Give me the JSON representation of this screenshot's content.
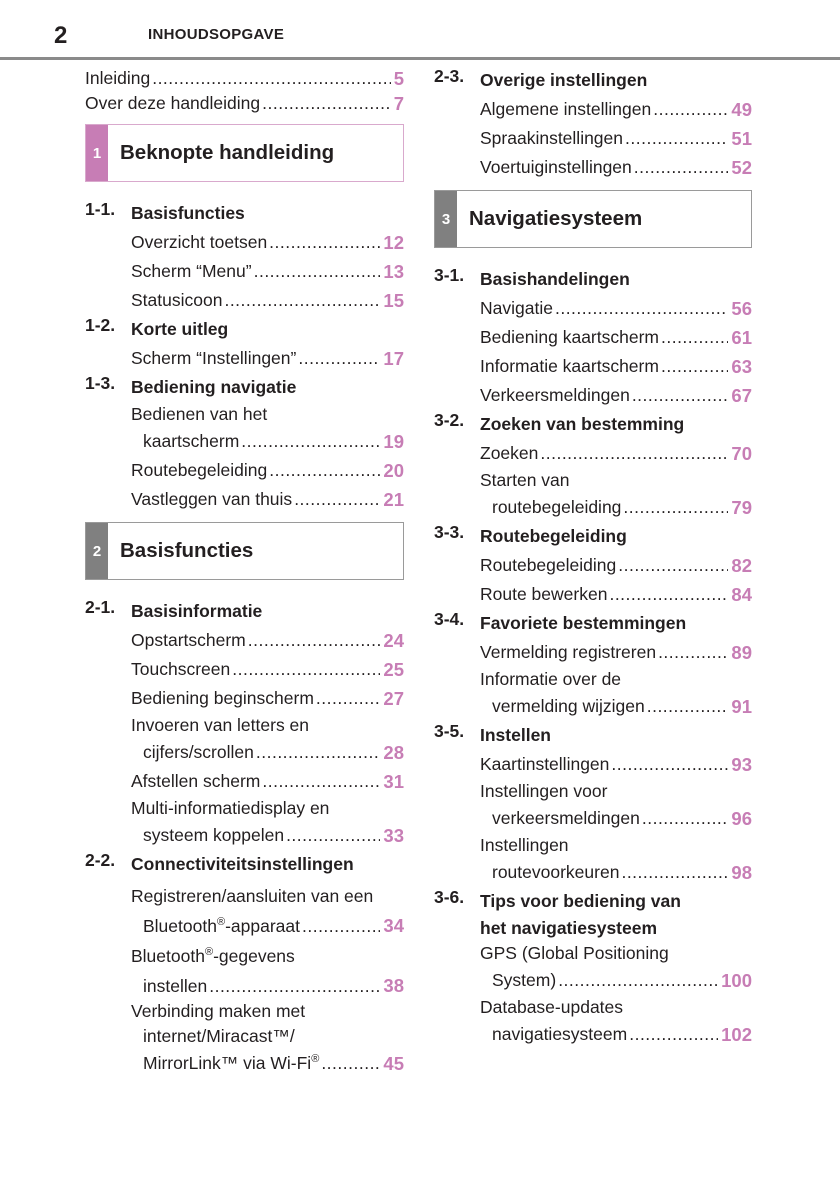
{
  "header": {
    "page_number": "2",
    "title": "INHOUDSOPGAVE"
  },
  "colors": {
    "accent": "#c77db5",
    "section_1": "#c77db5",
    "section_1_border": "#d9a9cd",
    "section_gray": "#808080",
    "section_gray_border": "#9a9a9a"
  },
  "columns": [
    {
      "items": [
        {
          "type": "entry",
          "plain": true,
          "lines": [
            "Inleiding"
          ],
          "page": "5"
        },
        {
          "type": "entry",
          "plain": true,
          "lines": [
            "Over deze handleiding"
          ],
          "page": "7"
        },
        {
          "type": "section",
          "num": "1",
          "title": "Beknopte handleiding",
          "style": "pink"
        },
        {
          "type": "heading",
          "num": "1-1.",
          "lines": [
            "Basisfuncties"
          ]
        },
        {
          "type": "entry",
          "lines": [
            "Overzicht toetsen"
          ],
          "page": "12"
        },
        {
          "type": "entry",
          "lines": [
            "Scherm “Menu”"
          ],
          "page": "13"
        },
        {
          "type": "entry",
          "lines": [
            "Statusicoon"
          ],
          "page": "15"
        },
        {
          "type": "heading",
          "num": "1-2.",
          "lines": [
            "Korte uitleg"
          ]
        },
        {
          "type": "entry",
          "lines": [
            "Scherm “Instellingen”"
          ],
          "page": "17"
        },
        {
          "type": "heading",
          "num": "1-3.",
          "lines": [
            "Bediening navigatie"
          ]
        },
        {
          "type": "entry",
          "lines": [
            "Bedienen van het",
            "kaartscherm"
          ],
          "page": "19"
        },
        {
          "type": "entry",
          "lines": [
            "Routebegeleiding"
          ],
          "page": "20"
        },
        {
          "type": "entry",
          "lines": [
            "Vastleggen van thuis"
          ],
          "page": "21"
        },
        {
          "type": "section",
          "num": "2",
          "title": "Basisfuncties",
          "style": "gray"
        },
        {
          "type": "heading",
          "num": "2-1.",
          "lines": [
            "Basisinformatie"
          ]
        },
        {
          "type": "entry",
          "lines": [
            "Opstartscherm"
          ],
          "page": "24"
        },
        {
          "type": "entry",
          "lines": [
            "Touchscreen"
          ],
          "page": "25"
        },
        {
          "type": "entry",
          "lines": [
            "Bediening beginscherm"
          ],
          "page": "27"
        },
        {
          "type": "entry",
          "lines": [
            "Invoeren van letters en",
            "cijfers/scrollen"
          ],
          "page": "28"
        },
        {
          "type": "entry",
          "lines": [
            "Afstellen scherm"
          ],
          "page": "31"
        },
        {
          "type": "entry",
          "lines": [
            "Multi-informatiedisplay en",
            "systeem koppelen"
          ],
          "page": "33"
        },
        {
          "type": "heading",
          "num": "2-2.",
          "lines": [
            "Connectiviteitsinstellingen"
          ]
        },
        {
          "type": "entry",
          "sup": true,
          "lines": [
            "Registreren/aansluiten van een",
            "Bluetooth®-apparaat"
          ],
          "page": "34"
        },
        {
          "type": "entry",
          "sup": true,
          "lines": [
            "Bluetooth®-gegevens",
            "instellen"
          ],
          "page": "38"
        },
        {
          "type": "entry",
          "lines": [
            "Verbinding maken met",
            "internet/Miracast™/",
            "MirrorLink™ via Wi-Fi®"
          ],
          "page": "45"
        }
      ]
    },
    {
      "items": [
        {
          "type": "heading",
          "num": "2-3.",
          "lines": [
            "Overige instellingen"
          ]
        },
        {
          "type": "entry",
          "lines": [
            "Algemene instellingen"
          ],
          "page": "49"
        },
        {
          "type": "entry",
          "lines": [
            "Spraakinstellingen"
          ],
          "page": "51"
        },
        {
          "type": "entry",
          "lines": [
            "Voertuiginstellingen"
          ],
          "page": "52"
        },
        {
          "type": "section",
          "num": "3",
          "title": "Navigatiesysteem",
          "style": "gray"
        },
        {
          "type": "heading",
          "num": "3-1.",
          "lines": [
            "Basishandelingen"
          ]
        },
        {
          "type": "entry",
          "lines": [
            "Navigatie"
          ],
          "page": "56"
        },
        {
          "type": "entry",
          "lines": [
            "Bediening kaartscherm"
          ],
          "page": "61"
        },
        {
          "type": "entry",
          "lines": [
            "Informatie kaartscherm"
          ],
          "page": "63"
        },
        {
          "type": "entry",
          "lines": [
            "Verkeersmeldingen"
          ],
          "page": "67"
        },
        {
          "type": "heading",
          "num": "3-2.",
          "lines": [
            "Zoeken van bestemming"
          ]
        },
        {
          "type": "entry",
          "lines": [
            "Zoeken"
          ],
          "page": "70"
        },
        {
          "type": "entry",
          "lines": [
            "Starten van",
            "routebegeleiding"
          ],
          "page": "79"
        },
        {
          "type": "heading",
          "num": "3-3.",
          "lines": [
            "Routebegeleiding"
          ]
        },
        {
          "type": "entry",
          "lines": [
            "Routebegeleiding"
          ],
          "page": "82"
        },
        {
          "type": "entry",
          "lines": [
            "Route bewerken"
          ],
          "page": "84"
        },
        {
          "type": "heading",
          "num": "3-4.",
          "lines": [
            "Favoriete bestemmingen"
          ]
        },
        {
          "type": "entry",
          "lines": [
            "Vermelding registreren"
          ],
          "page": "89"
        },
        {
          "type": "entry",
          "lines": [
            "Informatie over de",
            "vermelding wijzigen"
          ],
          "page": "91"
        },
        {
          "type": "heading",
          "num": "3-5.",
          "lines": [
            "Instellen"
          ]
        },
        {
          "type": "entry",
          "lines": [
            "Kaartinstellingen"
          ],
          "page": "93"
        },
        {
          "type": "entry",
          "lines": [
            "Instellingen voor",
            "verkeersmeldingen"
          ],
          "page": "96"
        },
        {
          "type": "entry",
          "lines": [
            "Instellingen",
            "routevoorkeuren"
          ],
          "page": "98"
        },
        {
          "type": "heading",
          "num": "3-6.",
          "lines": [
            "Tips voor bediening van",
            "het navigatiesysteem"
          ]
        },
        {
          "type": "entry",
          "lines": [
            "GPS (Global Positioning",
            "System)"
          ],
          "page": "100"
        },
        {
          "type": "entry",
          "lines": [
            "Database-updates",
            "navigatiesysteem"
          ],
          "page": "102"
        }
      ]
    }
  ]
}
